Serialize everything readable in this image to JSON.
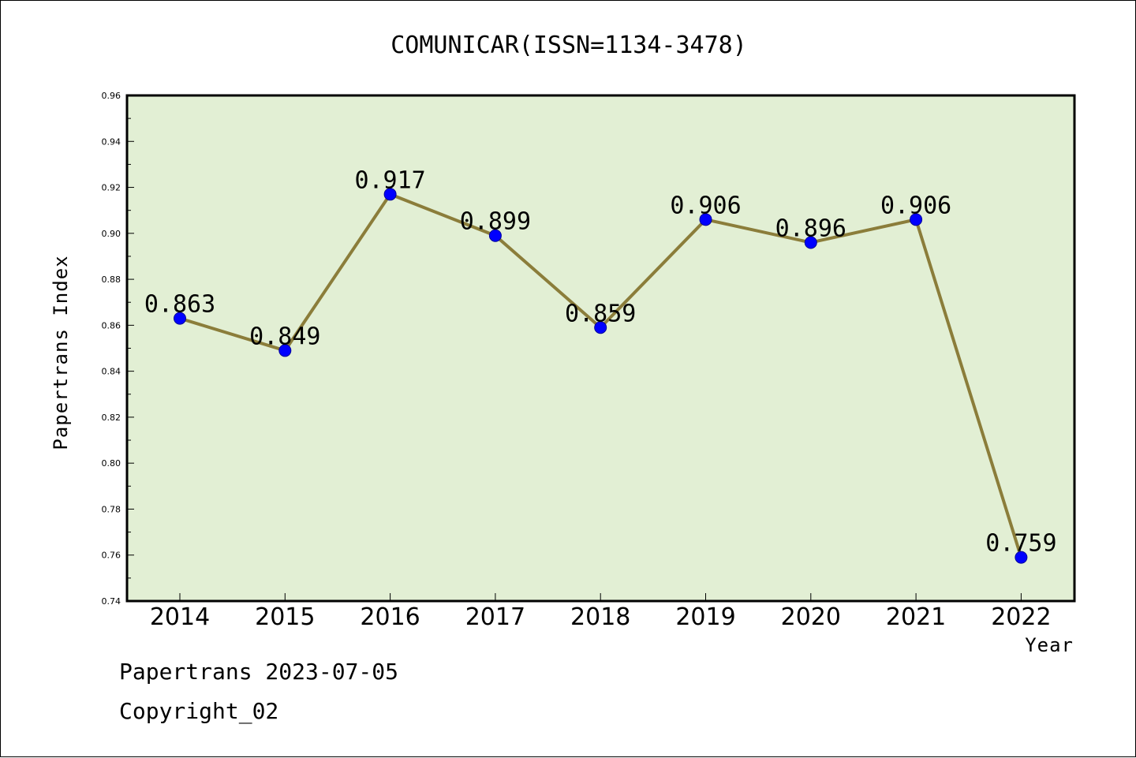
{
  "chart_data": {
    "type": "line",
    "title": "COMUNICAR(ISSN=1134-3478)",
    "xlabel": "Year",
    "ylabel": "Papertrans Index",
    "categories": [
      "2014",
      "2015",
      "2016",
      "2017",
      "2018",
      "2019",
      "2020",
      "2021",
      "2022"
    ],
    "series": [
      {
        "values": [
          0.863,
          0.849,
          0.917,
          0.899,
          0.859,
          0.906,
          0.896,
          0.906,
          0.759
        ]
      }
    ],
    "data_labels": [
      "0.863",
      "0.849",
      "0.917",
      "0.899",
      "0.859",
      "0.906",
      "0.896",
      "0.906",
      "0.759"
    ],
    "ylim": [
      0.74,
      0.96
    ],
    "yticks": [
      "0.74",
      "0.76",
      "0.78",
      "0.80",
      "0.82",
      "0.84",
      "0.86",
      "0.88",
      "0.90",
      "0.92",
      "0.94",
      "0.96"
    ],
    "grid": false,
    "legend": "none",
    "colors": {
      "plot_background": "#e2efd4",
      "line": "#8b7d3a",
      "marker": "#0000ff"
    }
  },
  "footer": {
    "date_line": "Papertrans 2023-07-05",
    "copyright": "Copyright_02"
  }
}
